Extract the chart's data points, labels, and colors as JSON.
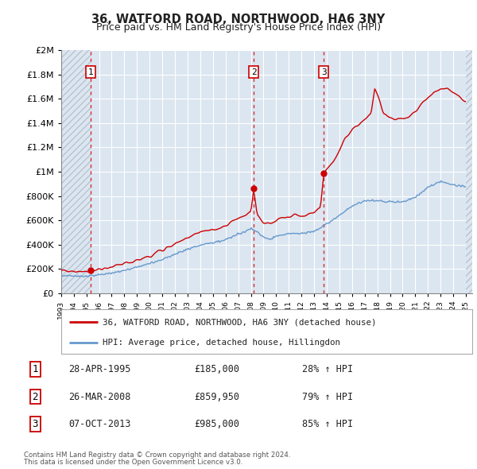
{
  "title": "36, WATFORD ROAD, NORTHWOOD, HA6 3NY",
  "subtitle": "Price paid vs. HM Land Registry's House Price Index (HPI)",
  "legend_label_red": "36, WATFORD ROAD, NORTHWOOD, HA6 3NY (detached house)",
  "legend_label_blue": "HPI: Average price, detached house, Hillingdon",
  "footnote1": "Contains HM Land Registry data © Crown copyright and database right 2024.",
  "footnote2": "This data is licensed under the Open Government Licence v3.0.",
  "transactions": [
    {
      "label": "1",
      "date": "28-APR-1995",
      "price": 185000,
      "pct": "28%",
      "year": 1995.32
    },
    {
      "label": "2",
      "date": "26-MAR-2008",
      "price": 859950,
      "pct": "79%",
      "year": 2008.23
    },
    {
      "label": "3",
      "date": "07-OCT-2013",
      "price": 985000,
      "pct": "85%",
      "year": 2013.77
    }
  ],
  "ylim": [
    0,
    2000000
  ],
  "xlim_start": 1993.0,
  "xlim_end": 2025.5,
  "hatch_start": 1993.0,
  "hatch_end": 1995.32,
  "hatch_right_start": 2025.0,
  "hatch_right_end": 2025.5,
  "background_color": "#ffffff",
  "plot_bg_color": "#dce6f1",
  "grid_color": "#ffffff",
  "hatch_color": "#b8c4d0",
  "red_line_color": "#cc0000",
  "blue_line_color": "#6699cc",
  "dashed_line_color": "#cc0000",
  "transaction_box_color": "#cc0000"
}
